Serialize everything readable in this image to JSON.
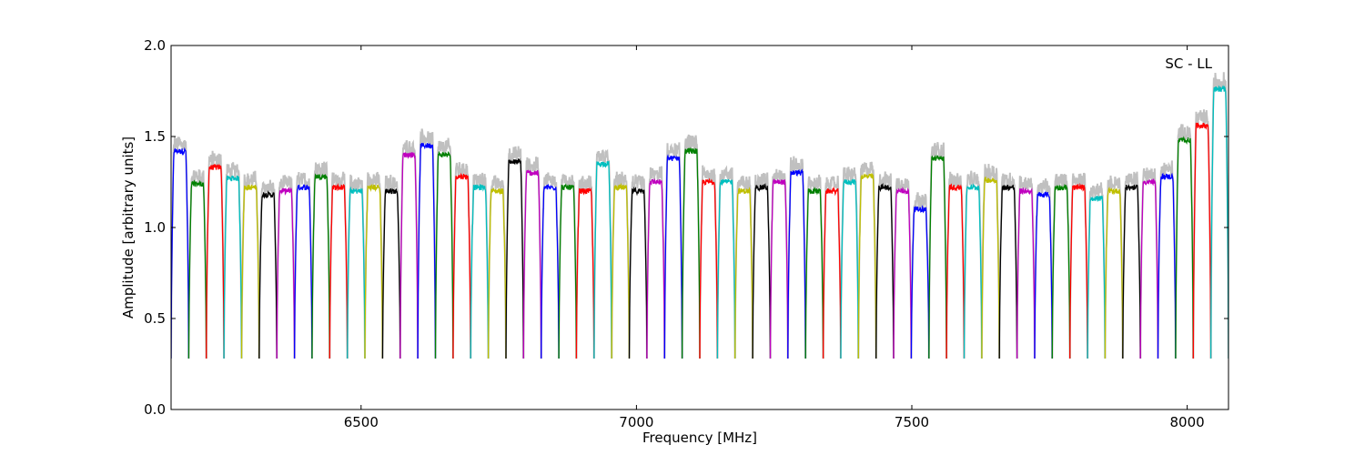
{
  "chart_data": {
    "type": "line",
    "title": "",
    "xlabel": "Frequency [MHz]",
    "ylabel": "Amplitude [arbitrary units]",
    "annotation": "SC - LL",
    "xlim": [
      6155,
      8075
    ],
    "ylim": [
      0.0,
      2.0
    ],
    "xticks": [
      6500,
      7000,
      7500,
      8000
    ],
    "yticks": [
      0.0,
      0.5,
      1.0,
      1.5,
      2.0
    ],
    "grid": false,
    "legend": "none",
    "color_cycle": [
      "#0000ff",
      "#008000",
      "#ff0000",
      "#00bfbf",
      "#bfbf00",
      "#000000",
      "#bf00bf"
    ],
    "background_color": "#c0c0c0",
    "channel_width_mhz": 32,
    "channel_starts_mhz": [
      6155,
      6187,
      6219,
      6251,
      6283,
      6315,
      6347,
      6379,
      6411,
      6443,
      6475,
      6507,
      6539,
      6571,
      6603,
      6635,
      6667,
      6699,
      6731,
      6763,
      6795,
      6827,
      6859,
      6891,
      6923,
      6955,
      6987,
      7019,
      7051,
      7083,
      7115,
      7147,
      7179,
      7211,
      7243,
      7275,
      7307,
      7339,
      7371,
      7403,
      7435,
      7467,
      7499,
      7531,
      7563,
      7595,
      7627,
      7659,
      7691,
      7723,
      7755,
      7787,
      7819,
      7851,
      7883,
      7915,
      7947,
      7979,
      8011,
      8043
    ],
    "channel_peaks": [
      1.42,
      1.24,
      1.33,
      1.27,
      1.22,
      1.18,
      1.2,
      1.22,
      1.28,
      1.22,
      1.2,
      1.22,
      1.2,
      1.4,
      1.45,
      1.4,
      1.28,
      1.22,
      1.2,
      1.36,
      1.3,
      1.22,
      1.22,
      1.2,
      1.35,
      1.22,
      1.2,
      1.25,
      1.38,
      1.42,
      1.25,
      1.25,
      1.2,
      1.22,
      1.25,
      1.3,
      1.2,
      1.2,
      1.25,
      1.28,
      1.22,
      1.2,
      1.1,
      1.38,
      1.22,
      1.22,
      1.26,
      1.22,
      1.2,
      1.18,
      1.22,
      1.22,
      1.16,
      1.2,
      1.22,
      1.25,
      1.28,
      1.48,
      1.56,
      1.76
    ],
    "channel_edge_minimum": 0.28
  }
}
